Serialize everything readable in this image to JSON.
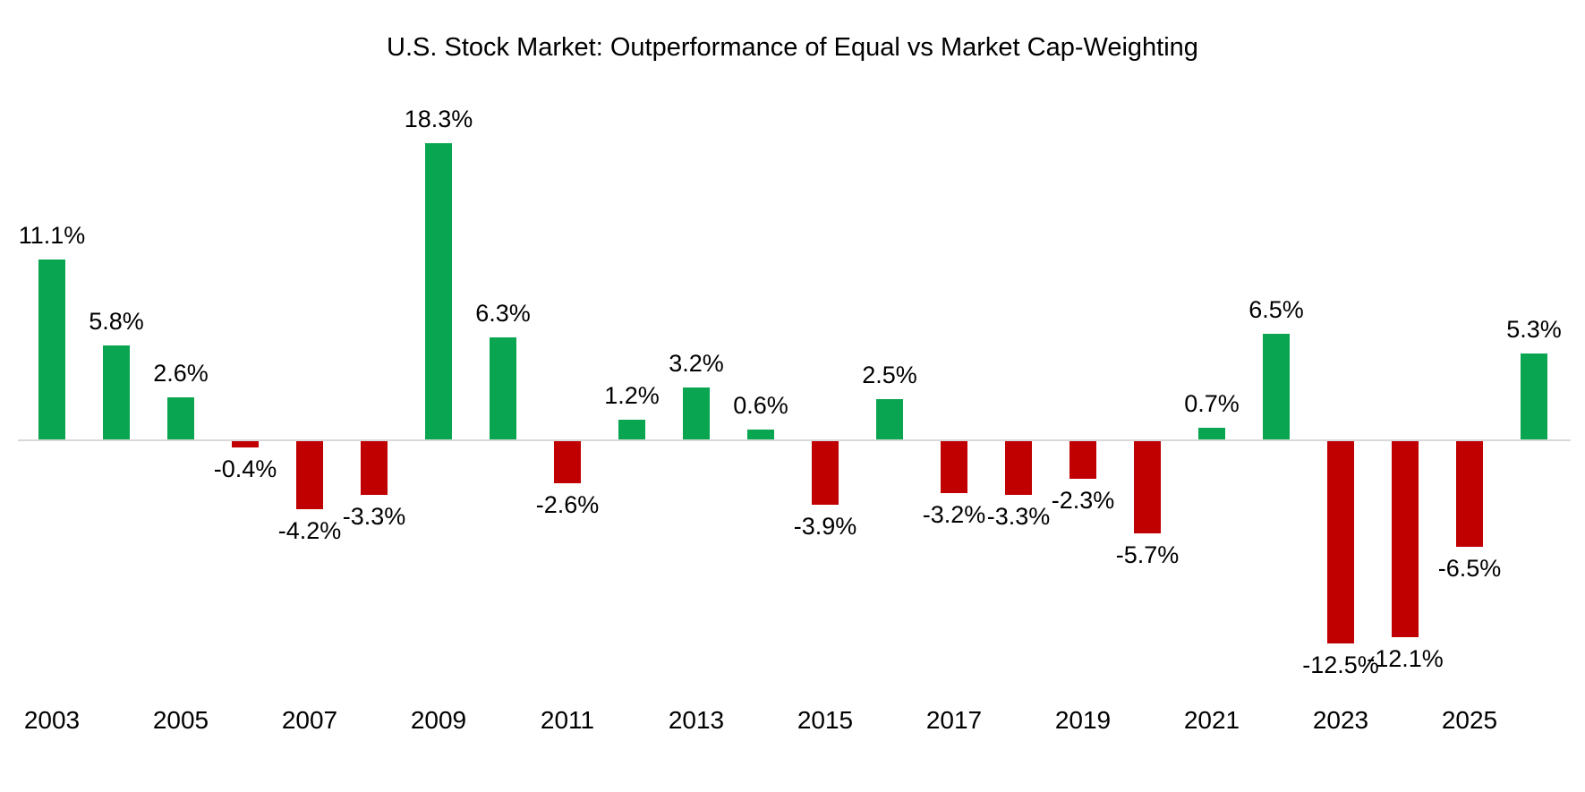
{
  "chart_data": {
    "type": "bar",
    "title": "U.S. Stock Market: Outperformance of Equal vs Market Cap-Weighting",
    "categories": [
      "2003",
      "2004",
      "2005",
      "2006",
      "2007",
      "2008",
      "2009",
      "2010",
      "2011",
      "2012",
      "2013",
      "2014",
      "2015",
      "2016",
      "2017",
      "2018",
      "2019",
      "2020",
      "2021",
      "2022",
      "2023",
      "2024",
      "2025",
      "2026"
    ],
    "values": [
      11.1,
      5.8,
      2.6,
      -0.4,
      -4.2,
      -3.3,
      18.3,
      6.3,
      -2.6,
      1.2,
      3.2,
      0.6,
      -3.9,
      2.5,
      -3.2,
      -3.3,
      -2.3,
      -5.7,
      0.7,
      6.5,
      -12.5,
      -12.1,
      -6.5,
      5.3
    ],
    "data_labels": [
      "11.1%",
      "5.8%",
      "2.6%",
      "-0.4%",
      "-4.2%",
      "-3.3%",
      "18.3%",
      "6.3%",
      "-2.6%",
      "1.2%",
      "3.2%",
      "0.6%",
      "-3.9%",
      "2.5%",
      "-3.2%",
      "-3.3%",
      "-2.3%",
      "-5.7%",
      "0.7%",
      "6.5%",
      "-12.5%",
      "-12.1%",
      "-6.5%",
      "5.3%"
    ],
    "x_tick_labels": [
      "2003",
      "2005",
      "2007",
      "2009",
      "2011",
      "2013",
      "2015",
      "2017",
      "2019",
      "2021",
      "2023",
      "2025"
    ],
    "xlabel": "",
    "ylabel": "",
    "ylim": [
      -14,
      20
    ],
    "grid": false,
    "legend": false,
    "positive_color": "#0aa550",
    "negative_color": "#c00000",
    "axis_line_color": "#d9d9d9",
    "background_color": "#ffffff",
    "label_color": "#000000"
  }
}
